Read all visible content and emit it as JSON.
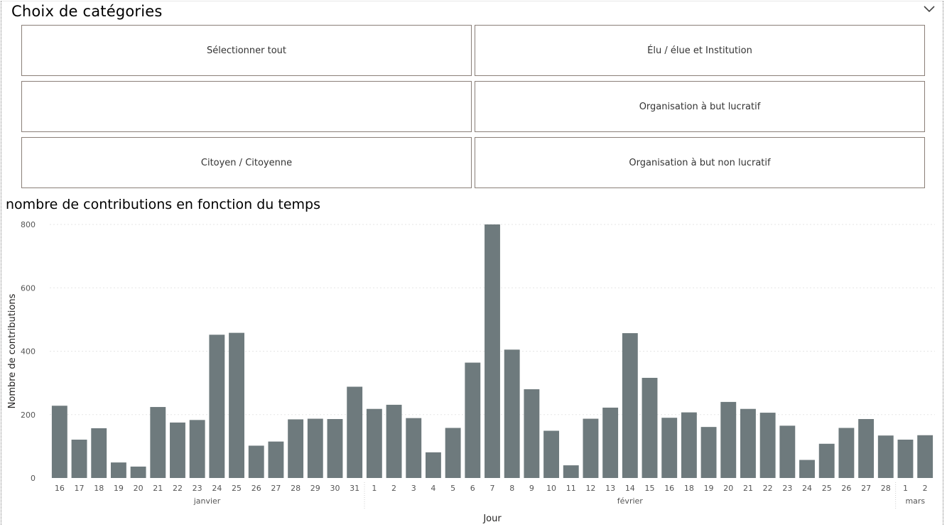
{
  "slicer": {
    "title": "Choix de catégories",
    "tiles": [
      {
        "label": "Sélectionner tout"
      },
      {
        "label": "Élu / élue et Institution"
      },
      {
        "label": ""
      },
      {
        "label": "Organisation à but lucratif"
      },
      {
        "label": "Citoyen / Citoyenne"
      },
      {
        "label": "Organisation à but non lucratif"
      }
    ]
  },
  "colors": {
    "bar": "#6e7a7d",
    "tile_border": "#8a7f78",
    "grid": "#e6e6e6"
  },
  "chart_data": {
    "type": "bar",
    "title": "nombre de contributions en fonction du temps",
    "xlabel": "Jour",
    "ylabel": "Nombre de contributions",
    "ylim": [
      0,
      800
    ],
    "yticks": [
      0,
      200,
      400,
      600,
      800
    ],
    "grid": true,
    "categories": [
      "16",
      "17",
      "18",
      "19",
      "20",
      "21",
      "22",
      "23",
      "24",
      "25",
      "26",
      "27",
      "28",
      "29",
      "30",
      "31",
      "1",
      "2",
      "3",
      "4",
      "5",
      "6",
      "7",
      "8",
      "9",
      "10",
      "11",
      "12",
      "13",
      "14",
      "15",
      "16",
      "18",
      "19",
      "20",
      "21",
      "22",
      "23",
      "24",
      "25",
      "26",
      "27",
      "28",
      "1",
      "2"
    ],
    "values": [
      228,
      121,
      157,
      49,
      36,
      224,
      175,
      183,
      452,
      458,
      102,
      115,
      185,
      187,
      186,
      288,
      218,
      231,
      189,
      81,
      158,
      364,
      800,
      405,
      280,
      149,
      40,
      187,
      222,
      457,
      316,
      190,
      207,
      161,
      240,
      218,
      206,
      165,
      57,
      108,
      158,
      186,
      134,
      121,
      135
    ],
    "months": [
      {
        "label": "janvier",
        "start": 0,
        "end": 15
      },
      {
        "label": "février",
        "start": 16,
        "end": 42
      },
      {
        "label": "mars",
        "start": 43,
        "end": 44
      }
    ]
  }
}
